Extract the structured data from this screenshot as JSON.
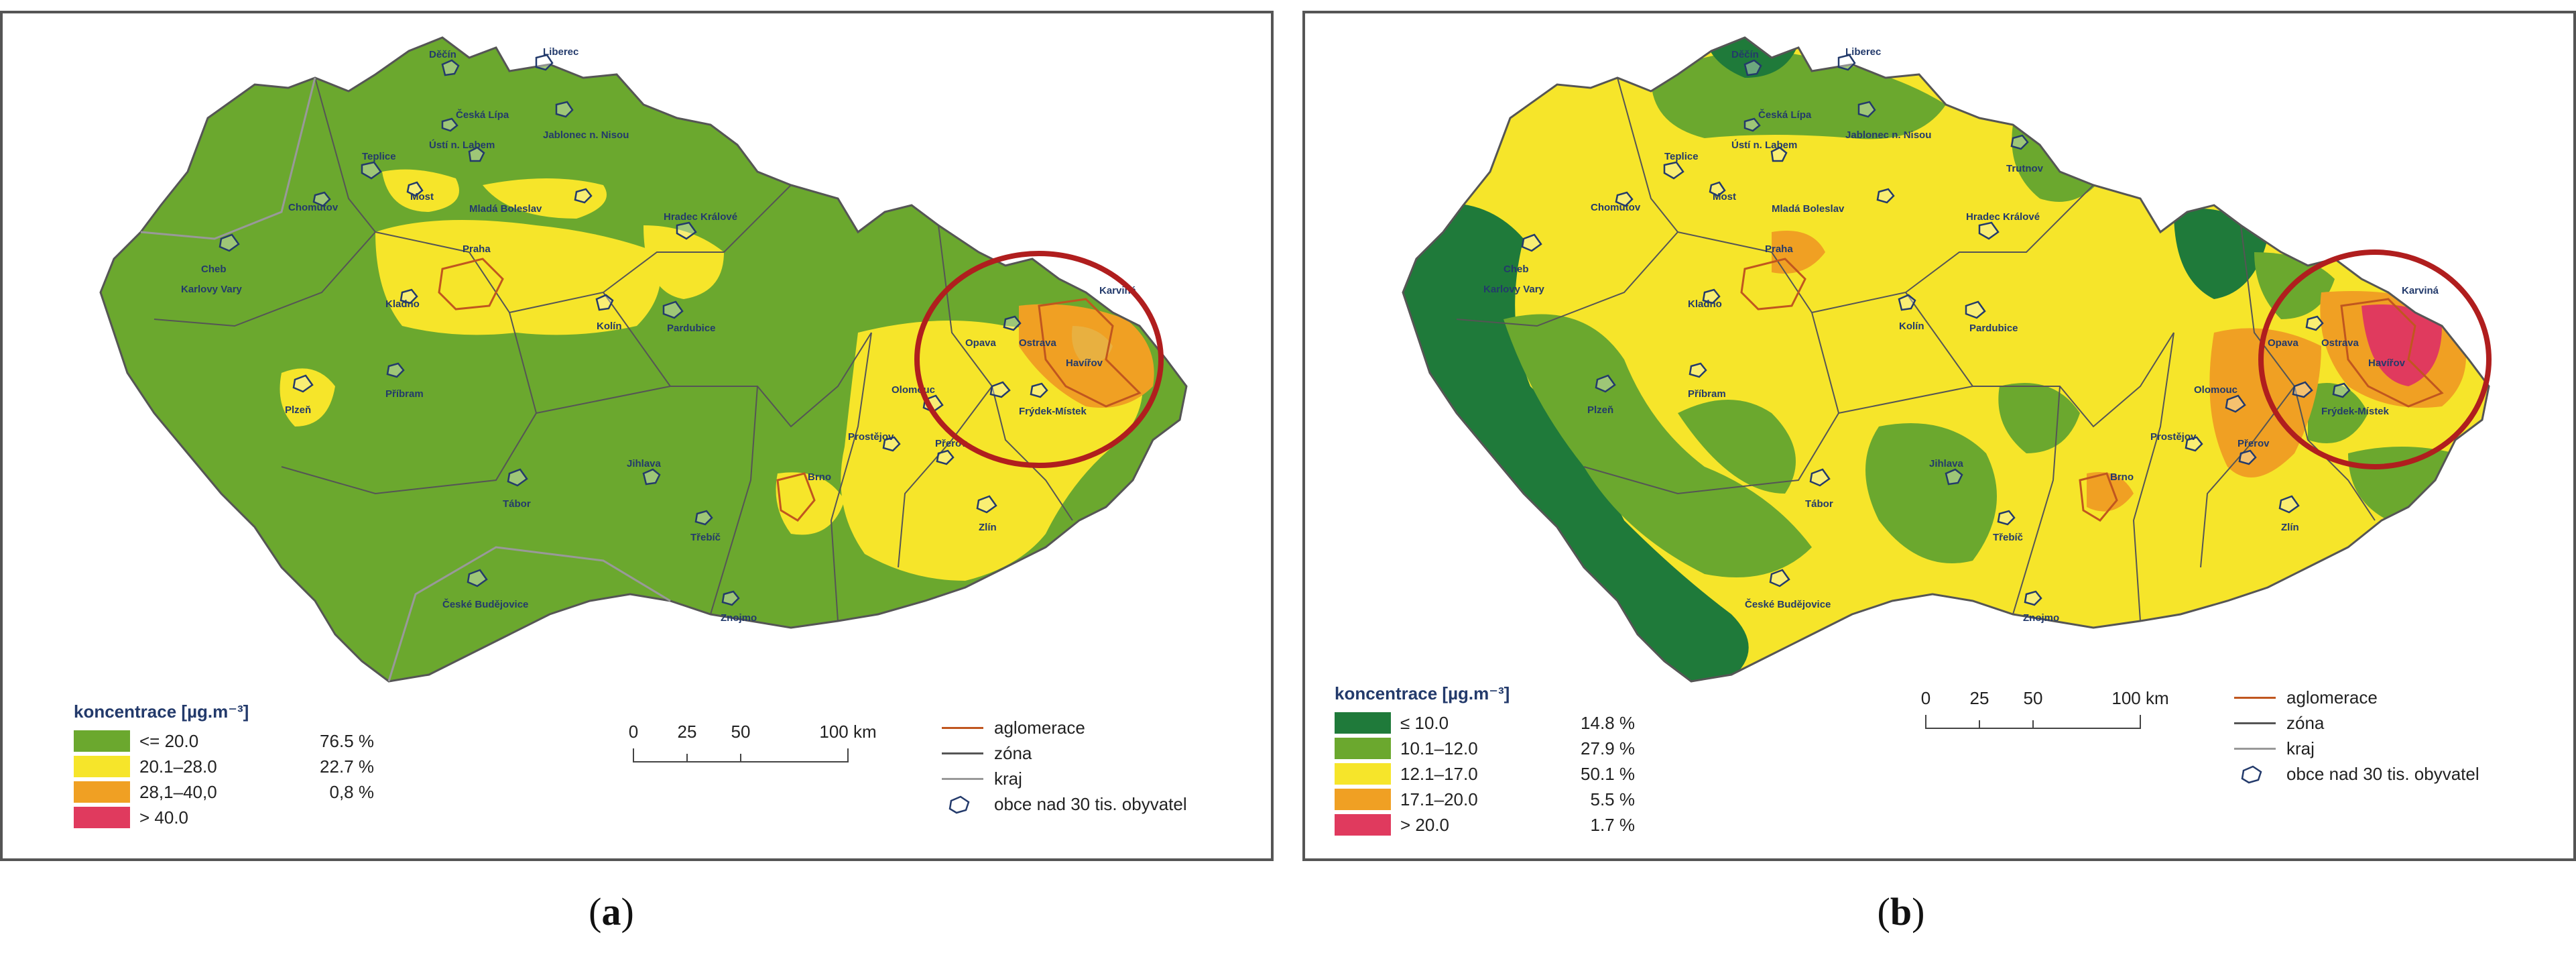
{
  "panels": [
    {
      "id": "a",
      "caption_letter": "a",
      "legend": {
        "title": "koncentrace [µg.m⁻³]",
        "classes": [
          {
            "label": "<= 20.0",
            "pct": "76.5 %",
            "color": "#6ba82e"
          },
          {
            "label": "20.1–28.0",
            "pct": "22.7 %",
            "color": "#f6e52a"
          },
          {
            "label": "28,1–40,0",
            "pct": "0,8 %",
            "color": "#f0a023"
          },
          {
            "label": "> 40.0",
            "pct": "",
            "color": "#e03a5e"
          }
        ]
      },
      "scale": {
        "ticks": [
          "0",
          "25",
          "50",
          "100 km"
        ]
      },
      "lines": [
        {
          "label": "aglomerace",
          "color": "#c0561f"
        },
        {
          "label": "zóna",
          "color": "#555555"
        },
        {
          "label": "kraj",
          "color": "#999999"
        },
        {
          "label": "obce nad 30 tis. obyvatel",
          "color": "#233a6b"
        }
      ],
      "cities": [
        "Děčín",
        "Liberec",
        "Česká Lípa",
        "Ústí n. Labem",
        "Jablonec n. Nisou",
        "Teplice",
        "Most",
        "Chomutov",
        "Mladá Boleslav",
        "Hradec Králové",
        "Praha",
        "Kladno",
        "Kolín",
        "Pardubice",
        "Cheb",
        "Karlovy Vary",
        "Karviná",
        "Opava",
        "Ostrava",
        "Havířov",
        "Olomouc",
        "Frýdek-Místek",
        "Prostějov",
        "Přerov",
        "Plzeň",
        "Příbram",
        "Jihlava",
        "Třebíč",
        "Brno",
        "Tábor",
        "Zlín",
        "Znojmo",
        "České Budějovice"
      ]
    },
    {
      "id": "b",
      "caption_letter": "b",
      "legend": {
        "title": "koncentrace [µg.m⁻³]",
        "classes": [
          {
            "label": "≤ 10.0",
            "pct": "14.8 %",
            "color": "#1f7a3a"
          },
          {
            "label": "10.1–12.0",
            "pct": "27.9 %",
            "color": "#6ba82e"
          },
          {
            "label": "12.1–17.0",
            "pct": "50.1 %",
            "color": "#f6e52a"
          },
          {
            "label": "17.1–20.0",
            "pct": "5.5 %",
            "color": "#f0a023"
          },
          {
            "label": "> 20.0",
            "pct": "1.7 %",
            "color": "#e03a5e"
          }
        ]
      },
      "scale": {
        "ticks": [
          "0",
          "25",
          "50",
          "100 km"
        ]
      },
      "lines": [
        {
          "label": "aglomerace",
          "color": "#c0561f"
        },
        {
          "label": "zóna",
          "color": "#555555"
        },
        {
          "label": "kraj",
          "color": "#999999"
        },
        {
          "label": "obce nad 30 tis. obyvatel",
          "color": "#233a6b"
        }
      ],
      "cities": [
        "Děčín",
        "Liberec",
        "Česká Lípa",
        "Ústí n. Labem",
        "Jablonec n. Nisou",
        "Teplice",
        "Most",
        "Chomutov",
        "Trutnov",
        "Mladá Boleslav",
        "Hradec Králové",
        "Praha",
        "Kladno",
        "Kolín",
        "Pardubice",
        "Cheb",
        "Karlovy Vary",
        "Karviná",
        "Opava",
        "Ostrava",
        "Havířov",
        "Olomouc",
        "Frýdek-Místek",
        "Prostějov",
        "Přerov",
        "Plzeň",
        "Příbram",
        "Jihlava",
        "Třebíč",
        "Brno",
        "Tábor",
        "Zlín",
        "Znojmo",
        "České Budějovice"
      ]
    }
  ],
  "highlight_color": "#b01e1e"
}
